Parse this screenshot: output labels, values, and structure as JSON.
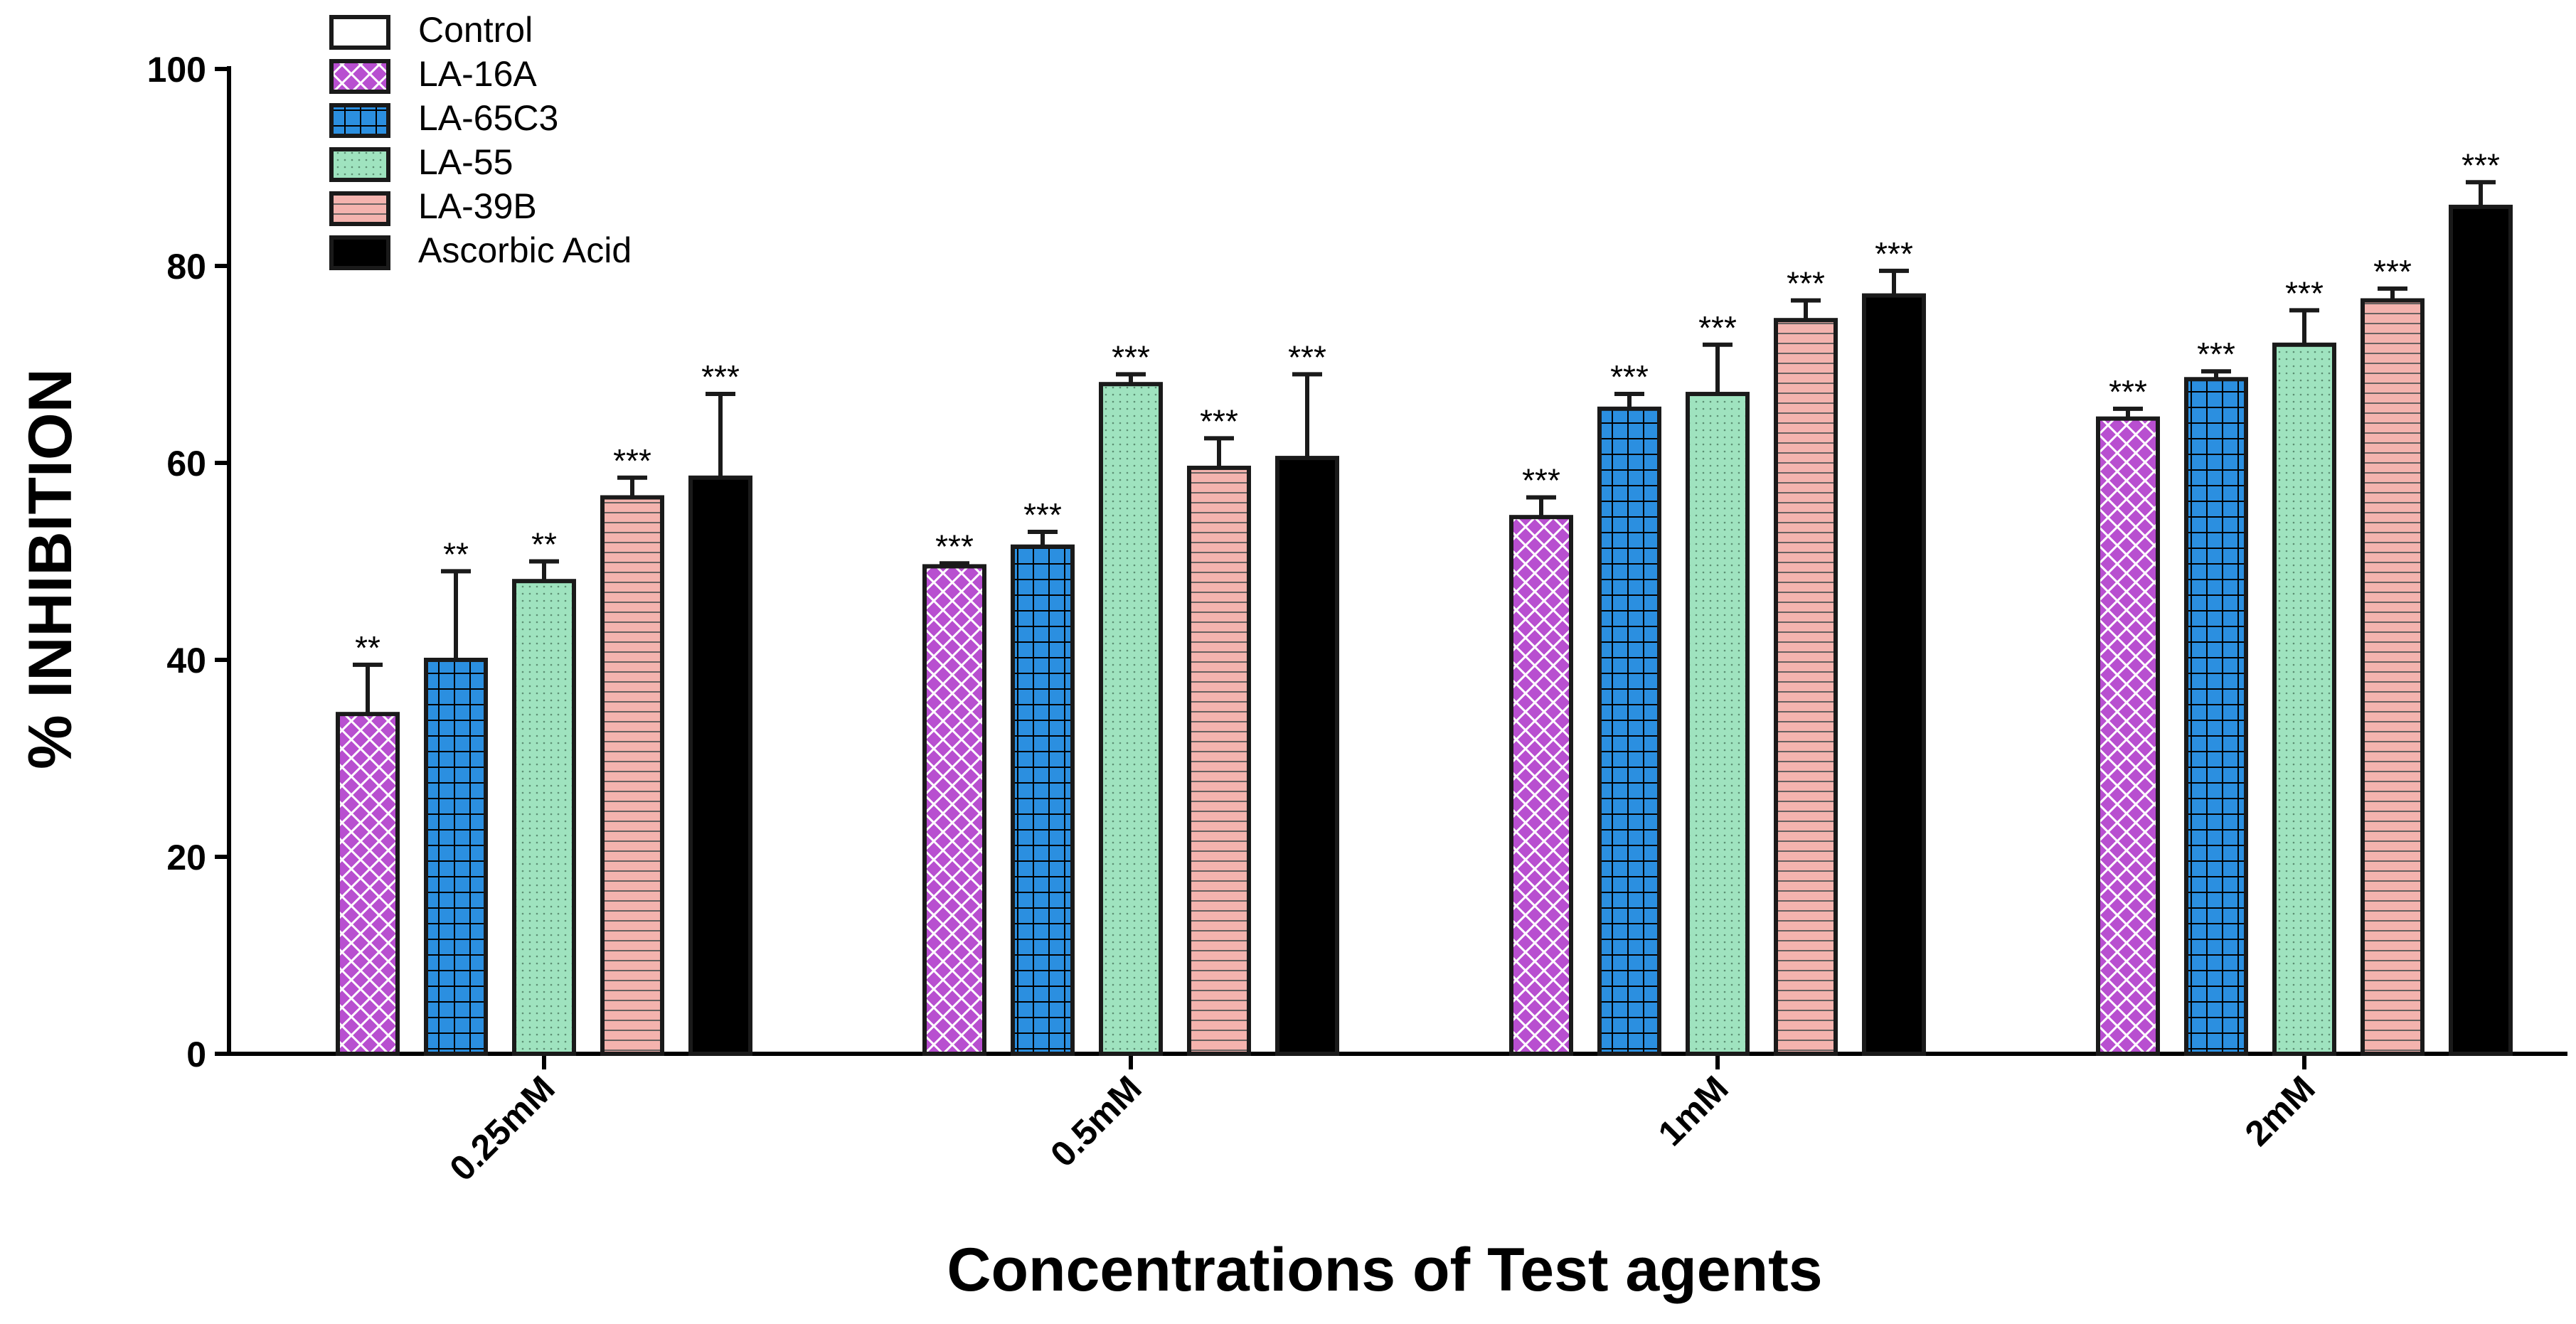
{
  "chart_data": {
    "type": "bar",
    "title": "",
    "xlabel": "Concentrations of Test agents",
    "ylabel": "% INHIBITION",
    "ylim": [
      0,
      100
    ],
    "yticks": [
      0,
      20,
      40,
      60,
      80,
      100
    ],
    "categories": [
      "0.25mM",
      "0.5mM",
      "1mM",
      "2mM"
    ],
    "legend_position": "top-left",
    "series": [
      {
        "name": "Control",
        "pattern": "none",
        "color": "#ffffff",
        "values": [
          0,
          0,
          0,
          0
        ],
        "errors": [
          0,
          0,
          0,
          0
        ],
        "sig": [
          "",
          "",
          "",
          ""
        ],
        "drawn": false
      },
      {
        "name": "LA-16A",
        "pattern": "crosshatch",
        "color": "#b84fd0",
        "values": [
          34.5,
          49.5,
          54.5,
          64.5
        ],
        "errors": [
          5.0,
          0.3,
          2.0,
          1.0
        ],
        "sig": [
          "**",
          "***",
          "***",
          "***"
        ],
        "drawn": true
      },
      {
        "name": "LA-65C3",
        "pattern": "grid",
        "color": "#2b8fe0",
        "values": [
          40.0,
          51.5,
          65.5,
          68.5
        ],
        "errors": [
          9.0,
          1.5,
          1.5,
          0.8
        ],
        "sig": [
          "**",
          "***",
          "***",
          "***"
        ],
        "drawn": true
      },
      {
        "name": "LA-55",
        "pattern": "dots",
        "color": "#9fe3bf",
        "values": [
          48.0,
          68.0,
          67.0,
          72.0
        ],
        "errors": [
          2.0,
          1.0,
          5.0,
          3.5
        ],
        "sig": [
          "**",
          "***",
          "***",
          "***"
        ],
        "drawn": true
      },
      {
        "name": "LA-39B",
        "pattern": "hstripes",
        "color": "#f4b3ae",
        "values": [
          56.5,
          59.5,
          74.5,
          76.5
        ],
        "errors": [
          2.0,
          3.0,
          2.0,
          1.2
        ],
        "sig": [
          "***",
          "***",
          "***",
          "***"
        ],
        "drawn": true
      },
      {
        "name": "Ascorbic Acid",
        "pattern": "solid",
        "color": "#000000",
        "values": [
          58.5,
          60.5,
          77.0,
          86.0
        ],
        "errors": [
          8.5,
          8.5,
          2.5,
          2.5
        ],
        "sig": [
          "***",
          "***",
          "***",
          "***"
        ],
        "drawn": true
      }
    ]
  }
}
